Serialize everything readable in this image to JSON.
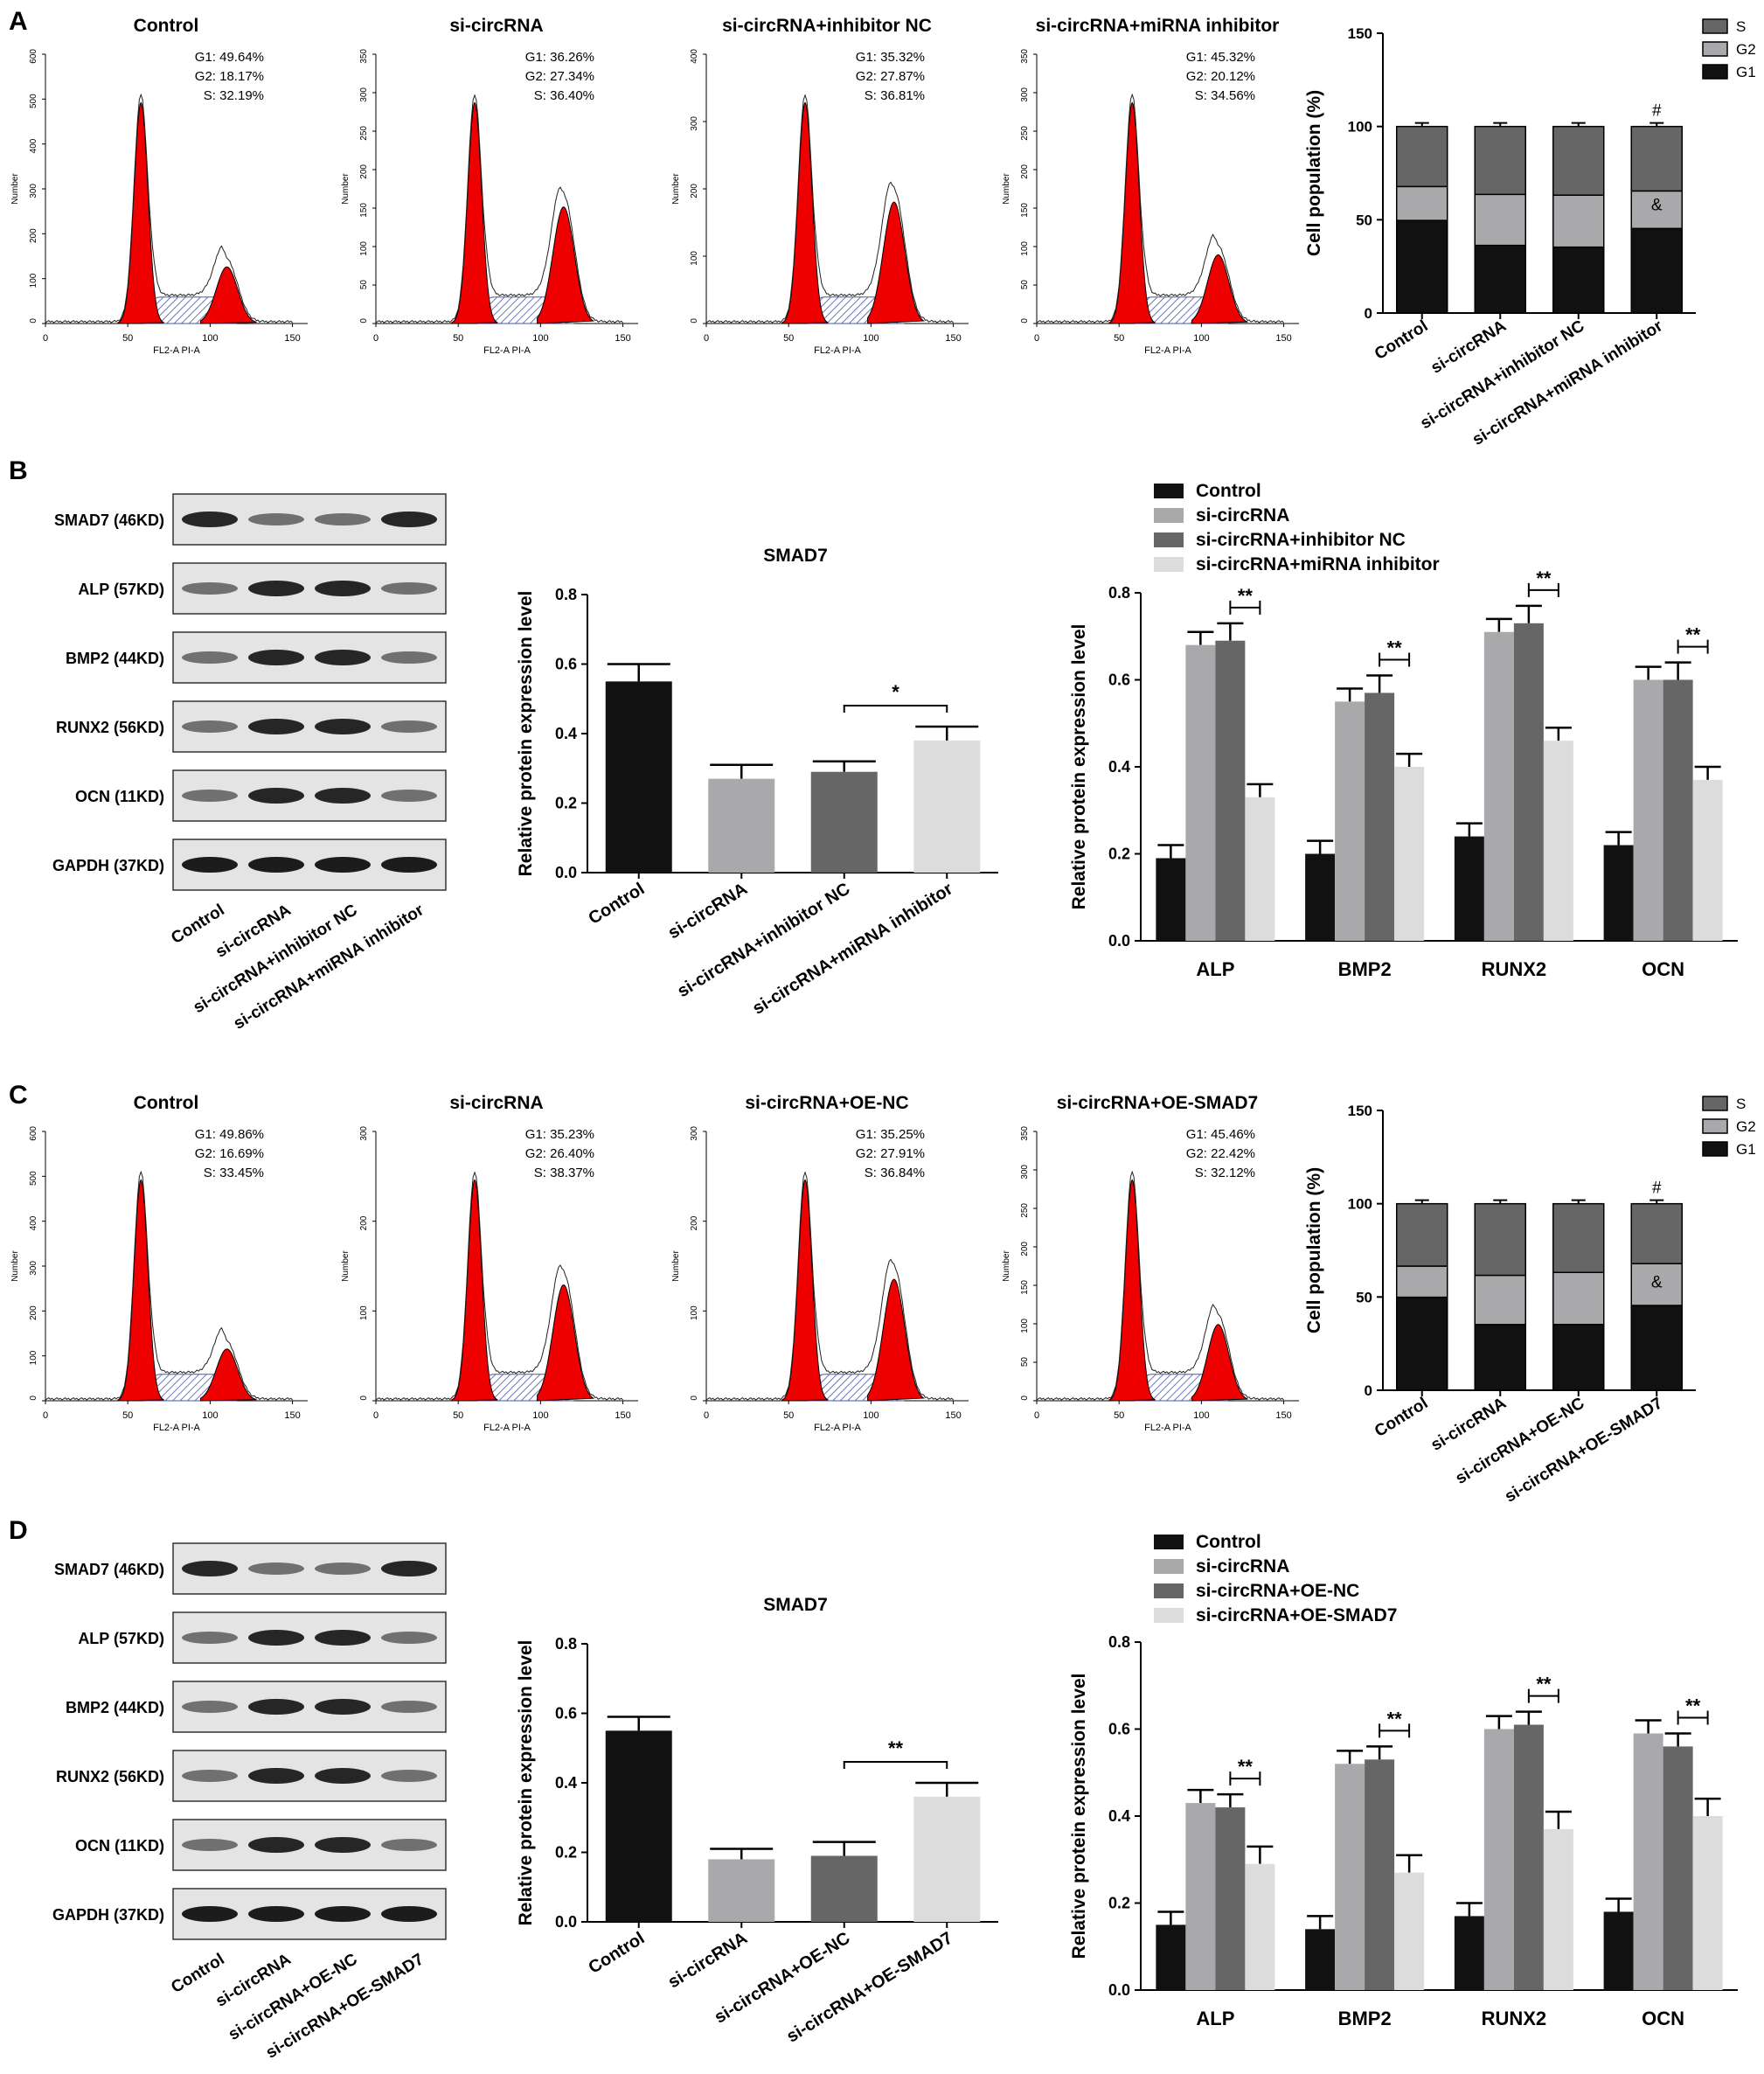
{
  "panels": [
    {
      "letter": "A",
      "flow": [
        {
          "title": "Control",
          "g1": "G1: 49.64%",
          "g2": "G2: 18.17%",
          "s": "S: 32.19%",
          "yticks": [
            "0",
            "100",
            "200",
            "300",
            "400",
            "500",
            "600"
          ],
          "xticks": [
            "0",
            "50",
            "100",
            "150"
          ],
          "ylabel": "Number",
          "xlabel": "FL2-A PI-A"
        },
        {
          "title": "si-circRNA",
          "g1": "G1: 36.26%",
          "g2": "G2: 27.34%",
          "s": "S: 36.40%",
          "yticks": [
            "0",
            "50",
            "100",
            "150",
            "200",
            "250",
            "300",
            "350"
          ],
          "xticks": [
            "0",
            "50",
            "100",
            "150"
          ],
          "ylabel": "Number",
          "xlabel": "FL2-A PI-A"
        },
        {
          "title": "si-circRNA+inhibitor NC",
          "g1": "G1: 35.32%",
          "g2": "G2: 27.87%",
          "s": "S: 36.81%",
          "yticks": [
            "0",
            "100",
            "200",
            "300",
            "400"
          ],
          "xticks": [
            "0",
            "50",
            "100",
            "150"
          ],
          "ylabel": "Number",
          "xlabel": "FL2-A PI-A"
        },
        {
          "title": "si-circRNA+miRNA inhibitor",
          "g1": "G1: 45.32%",
          "g2": "G2: 20.12%",
          "s": "S: 34.56%",
          "yticks": [
            "0",
            "50",
            "100",
            "150",
            "200",
            "250",
            "300",
            "350"
          ],
          "xticks": [
            "0",
            "50",
            "100",
            "150"
          ],
          "ylabel": "Number",
          "xlabel": "FL2-A PI-A"
        }
      ]
    },
    {
      "letter": "B",
      "blot": {
        "proteins": [
          "SMAD7 (46KD)",
          "ALP (57KD)",
          "BMP2 (44KD)",
          "RUNX2 (56KD)",
          "OCN (11KD)",
          "GAPDH (37KD)"
        ],
        "lanes": [
          "Control",
          "si-circRNA",
          "si-circRNA+inhibitor NC",
          "si-circRNA+miRNA inhibitor"
        ]
      }
    },
    {
      "letter": "C",
      "flow": [
        {
          "title": "Control",
          "g1": "G1: 49.86%",
          "g2": "G2: 16.69%",
          "s": "S: 33.45%",
          "yticks": [
            "0",
            "100",
            "200",
            "300",
            "400",
            "500",
            "600"
          ],
          "xticks": [
            "0",
            "50",
            "100",
            "150"
          ],
          "ylabel": "Number",
          "xlabel": "FL2-A PI-A"
        },
        {
          "title": "si-circRNA",
          "g1": "G1: 35.23%",
          "g2": "G2: 26.40%",
          "s": "S: 38.37%",
          "yticks": [
            "0",
            "100",
            "200",
            "300"
          ],
          "xticks": [
            "0",
            "50",
            "100",
            "150"
          ],
          "ylabel": "Number",
          "xlabel": "FL2-A PI-A"
        },
        {
          "title": "si-circRNA+OE-NC",
          "g1": "G1: 35.25%",
          "g2": "G2: 27.91%",
          "s": "S: 36.84%",
          "yticks": [
            "0",
            "100",
            "200",
            "300"
          ],
          "xticks": [
            "0",
            "50",
            "100",
            "150"
          ],
          "ylabel": "Number",
          "xlabel": "FL2-A PI-A"
        },
        {
          "title": "si-circRNA+OE-SMAD7",
          "g1": "G1: 45.46%",
          "g2": "G2: 22.42%",
          "s": "S: 32.12%",
          "yticks": [
            "0",
            "50",
            "100",
            "150",
            "200",
            "250",
            "300",
            "350"
          ],
          "xticks": [
            "0",
            "50",
            "100",
            "150"
          ],
          "ylabel": "Number",
          "xlabel": "FL2-A PI-A"
        }
      ]
    },
    {
      "letter": "D",
      "blot": {
        "proteins": [
          "SMAD7 (46KD)",
          "ALP (57KD)",
          "BMP2 (44KD)",
          "RUNX2 (56KD)",
          "OCN (11KD)",
          "GAPDH (37KD)"
        ],
        "lanes": [
          "Control",
          "si-circRNA",
          "si-circRNA+OE-NC",
          "si-circRNA+OE-SMAD7"
        ]
      }
    }
  ],
  "colors": {
    "black": "#111111",
    "gray_light": "#a9a9ab",
    "gray_dark": "#666666",
    "gray_pale": "#dcdcdc",
    "peak_red": "#ee0000",
    "hatch_blue": "#4a55a8"
  },
  "chart_data": [
    {
      "type": "bar",
      "stacked": true,
      "title": "",
      "ylabel": "Cell population (%)",
      "ylim": [
        0,
        150
      ],
      "yticks": [
        0,
        50,
        100,
        150
      ],
      "categories": [
        "Control",
        "si-circRNA",
        "si-circRNA+inhibitor NC",
        "si-circRNA+miRNA inhibitor"
      ],
      "series": [
        {
          "name": "G1",
          "values": [
            49.64,
            36.26,
            35.32,
            45.32
          ]
        },
        {
          "name": "G2",
          "values": [
            18.17,
            27.34,
            27.87,
            20.12
          ]
        },
        {
          "name": "S",
          "values": [
            32.19,
            36.4,
            36.81,
            34.56
          ]
        }
      ],
      "legend": [
        "S",
        "G2",
        "G1"
      ],
      "annotations": [
        "#",
        "&"
      ],
      "legend_position": "top-right"
    },
    {
      "type": "bar",
      "title": "SMAD7",
      "ylabel": "Relative protein expression level",
      "ylim": [
        0,
        0.8
      ],
      "yticks": [
        0.0,
        0.2,
        0.4,
        0.6,
        0.8
      ],
      "categories": [
        "Control",
        "si-circRNA",
        "si-circRNA+inhibitor NC",
        "si-circRNA+miRNA inhibitor"
      ],
      "values": [
        0.55,
        0.27,
        0.29,
        0.38
      ],
      "errors": [
        0.05,
        0.04,
        0.03,
        0.04
      ],
      "sig": "*"
    },
    {
      "type": "bar",
      "title": "",
      "ylabel": "Relative protein expression level",
      "ylim": [
        0,
        0.8
      ],
      "yticks": [
        0.0,
        0.2,
        0.4,
        0.6,
        0.8
      ],
      "categories": [
        "ALP",
        "BMP2",
        "RUNX2",
        "OCN"
      ],
      "series": [
        {
          "name": "Control",
          "values": [
            0.19,
            0.2,
            0.24,
            0.22
          ]
        },
        {
          "name": "si-circRNA",
          "values": [
            0.68,
            0.55,
            0.71,
            0.6
          ]
        },
        {
          "name": "si-circRNA+inhibitor NC",
          "values": [
            0.69,
            0.57,
            0.73,
            0.6
          ]
        },
        {
          "name": "si-circRNA+miRNA inhibitor",
          "values": [
            0.33,
            0.4,
            0.46,
            0.37
          ]
        }
      ],
      "errors": [
        0.03,
        0.03,
        0.04,
        0.03
      ],
      "sig": "**",
      "legend_position": "top-left"
    },
    {
      "type": "bar",
      "stacked": true,
      "title": "",
      "ylabel": "Cell population (%)",
      "ylim": [
        0,
        150
      ],
      "yticks": [
        0,
        50,
        100,
        150
      ],
      "categories": [
        "Control",
        "si-circRNA",
        "si-circRNA+OE-NC",
        "si-circRNA+OE-SMAD7"
      ],
      "series": [
        {
          "name": "G1",
          "values": [
            49.86,
            35.23,
            35.25,
            45.46
          ]
        },
        {
          "name": "G2",
          "values": [
            16.69,
            26.4,
            27.91,
            22.42
          ]
        },
        {
          "name": "S",
          "values": [
            33.45,
            38.37,
            36.84,
            32.12
          ]
        }
      ],
      "legend": [
        "S",
        "G2",
        "G1"
      ],
      "annotations": [
        "#",
        "&"
      ],
      "legend_position": "top-right"
    },
    {
      "type": "bar",
      "title": "SMAD7",
      "ylabel": "Relative protein expression level",
      "ylim": [
        0,
        0.8
      ],
      "yticks": [
        0.0,
        0.2,
        0.4,
        0.6,
        0.8
      ],
      "categories": [
        "Control",
        "si-circRNA",
        "si-circRNA+OE-NC",
        "si-circRNA+OE-SMAD7"
      ],
      "values": [
        0.55,
        0.18,
        0.19,
        0.36
      ],
      "errors": [
        0.04,
        0.03,
        0.04,
        0.04
      ],
      "sig": "**"
    },
    {
      "type": "bar",
      "title": "",
      "ylabel": "Relative protein expression level",
      "ylim": [
        0,
        0.8
      ],
      "yticks": [
        0.0,
        0.2,
        0.4,
        0.6,
        0.8
      ],
      "categories": [
        "ALP",
        "BMP2",
        "RUNX2",
        "OCN"
      ],
      "series": [
        {
          "name": "Control",
          "values": [
            0.15,
            0.14,
            0.17,
            0.18
          ]
        },
        {
          "name": "si-circRNA",
          "values": [
            0.43,
            0.52,
            0.6,
            0.59
          ]
        },
        {
          "name": "si-circRNA+OE-NC",
          "values": [
            0.42,
            0.53,
            0.61,
            0.56
          ]
        },
        {
          "name": "si-circRNA+OE-SMAD7",
          "values": [
            0.29,
            0.27,
            0.37,
            0.4
          ]
        }
      ],
      "errors": [
        0.03,
        0.03,
        0.03,
        0.04
      ],
      "sig": "**",
      "legend_position": "top-left"
    }
  ]
}
